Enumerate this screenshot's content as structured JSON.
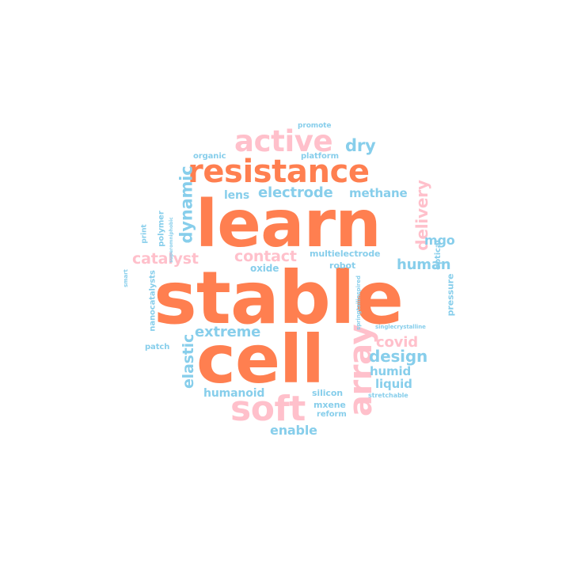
{
  "palette": {
    "orange": "#ff7f50",
    "pink": "#ffc0cb",
    "blue": "#87ceeb",
    "background": "#ffffff"
  },
  "words": {
    "learn": "learn",
    "stable": "stable",
    "cell": "cell",
    "resistance": "resistance",
    "active": "active",
    "soft": "soft",
    "array": "array",
    "dry": "dry",
    "electrode": "electrode",
    "lens": "lens",
    "methane": "methane",
    "dynamic": "dynamic",
    "delivery": "delivery",
    "catalyst": "catalyst",
    "contact": "contact",
    "human": "human",
    "mgo": "mgo",
    "multielectrode": "multielectrode",
    "robot": "robot",
    "oxide": "oxide",
    "extreme": "extreme",
    "elastic": "elastic",
    "covid": "covid",
    "design": "design",
    "humid": "humid",
    "liquid": "liquid",
    "humanoid": "humanoid",
    "silicon": "silicon",
    "mxene": "mxene",
    "reform": "reform",
    "stretchable": "stretchable",
    "enable": "enable",
    "promote": "promote",
    "organic": "organic",
    "platform": "platform",
    "polymer": "polymer",
    "print": "print",
    "superomniphobic": "superomniphobic",
    "nanocatalysts": "nanocatalysts",
    "smart": "smart",
    "patch": "patch",
    "optical": "optical",
    "pressure": "pressure",
    "springtailinspired": "springtailinspired",
    "singlecrystalline": "singlecrystalline"
  }
}
